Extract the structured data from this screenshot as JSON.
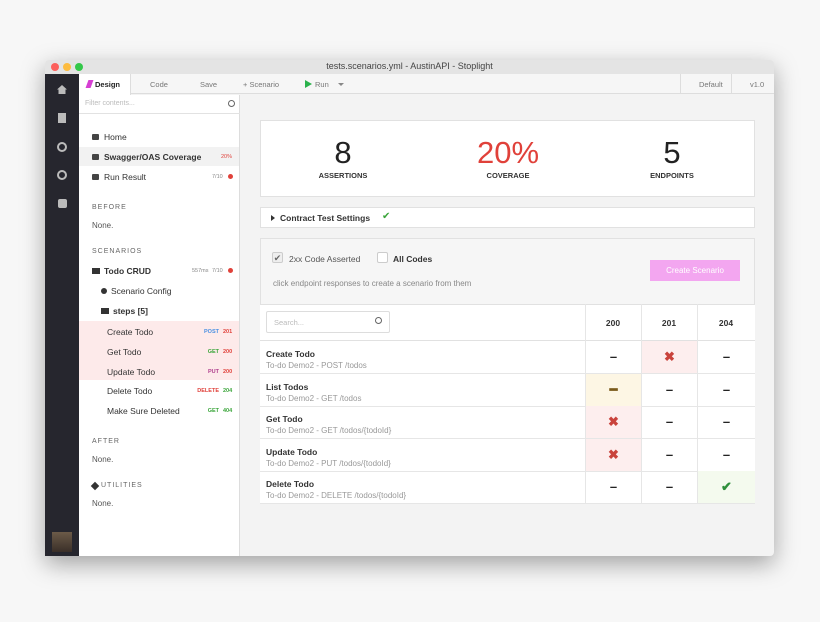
{
  "window": {
    "title": "tests.scenarios.yml - AustinAPI - Stoplight"
  },
  "tabs": [
    "Design",
    "Code",
    "Save",
    "+ Scenario",
    "Run"
  ],
  "right_tabs": [
    "Default",
    "v1.0"
  ],
  "sidebar": {
    "filter": "Filter contents...",
    "nav": [
      {
        "label": "Home"
      },
      {
        "label": "Swagger/OAS Coverage",
        "badge": "20%"
      },
      {
        "label": "Run Result",
        "badge": "7/10"
      }
    ],
    "before": {
      "heading": "BEFORE",
      "text": "None."
    },
    "scenarios": {
      "heading": "SCENARIOS",
      "name": "Todo CRUD",
      "time": "557ms",
      "result": "7/10",
      "config": "Scenario Config",
      "steps_label": "steps [5]",
      "steps": [
        {
          "name": "Create Todo",
          "method": "POST",
          "status": "201",
          "method_color": "#4a90e2",
          "status_color": "#e0413a",
          "background": "#fdeaea"
        },
        {
          "name": "Get Todo",
          "method": "GET",
          "status": "200",
          "method_color": "#3aa53a",
          "status_color": "#e0413a",
          "background": "#fdeaea"
        },
        {
          "name": "Update Todo",
          "method": "PUT",
          "status": "200",
          "method_color": "#b0408e",
          "status_color": "#e0413a",
          "background": "#fdeaea"
        },
        {
          "name": "Delete Todo",
          "method": "DELETE",
          "status": "204",
          "method_color": "#e0413a",
          "status_color": "#3aa53a",
          "background": "#ffffff"
        },
        {
          "name": "Make Sure Deleted",
          "method": "GET",
          "status": "404",
          "method_color": "#3aa53a",
          "status_color": "#3aa53a",
          "background": "#ffffff"
        }
      ]
    },
    "after": {
      "heading": "AFTER",
      "text": "None."
    },
    "utilities": {
      "heading": "UTILITIES",
      "text": "None."
    }
  },
  "stats": [
    {
      "value": "8",
      "label": "ASSERTIONS"
    },
    {
      "value": "20%",
      "label": "COVERAGE"
    },
    {
      "value": "5",
      "label": "ENDPOINTS"
    }
  ],
  "settings": "Contract Test Settings",
  "filters": {
    "asserted": "2xx Code Asserted",
    "all": "All Codes",
    "hint": "click endpoint responses to create a scenario from them",
    "button": "Create Scenario"
  },
  "table": {
    "search": "Search...",
    "columns": [
      "200",
      "201",
      "204"
    ],
    "rows": [
      {
        "name": "Create Todo",
        "path": "To-do Demo2 - POST /todos",
        "cells": [
          "–",
          "✖",
          "–"
        ]
      },
      {
        "name": "List Todos",
        "path": "To-do Demo2 - GET /todos",
        "cells": [
          "━",
          "–",
          "–"
        ]
      },
      {
        "name": "Get Todo",
        "path": "To-do Demo2 - GET /todos/{todoId}",
        "cells": [
          "✖",
          "–",
          "–"
        ]
      },
      {
        "name": "Update Todo",
        "path": "To-do Demo2 - PUT /todos/{todoId}",
        "cells": [
          "✖",
          "–",
          "–"
        ]
      },
      {
        "name": "Delete Todo",
        "path": "To-do Demo2 - DELETE /todos/{todoId}",
        "cells": [
          "–",
          "–",
          "✔"
        ]
      }
    ]
  }
}
